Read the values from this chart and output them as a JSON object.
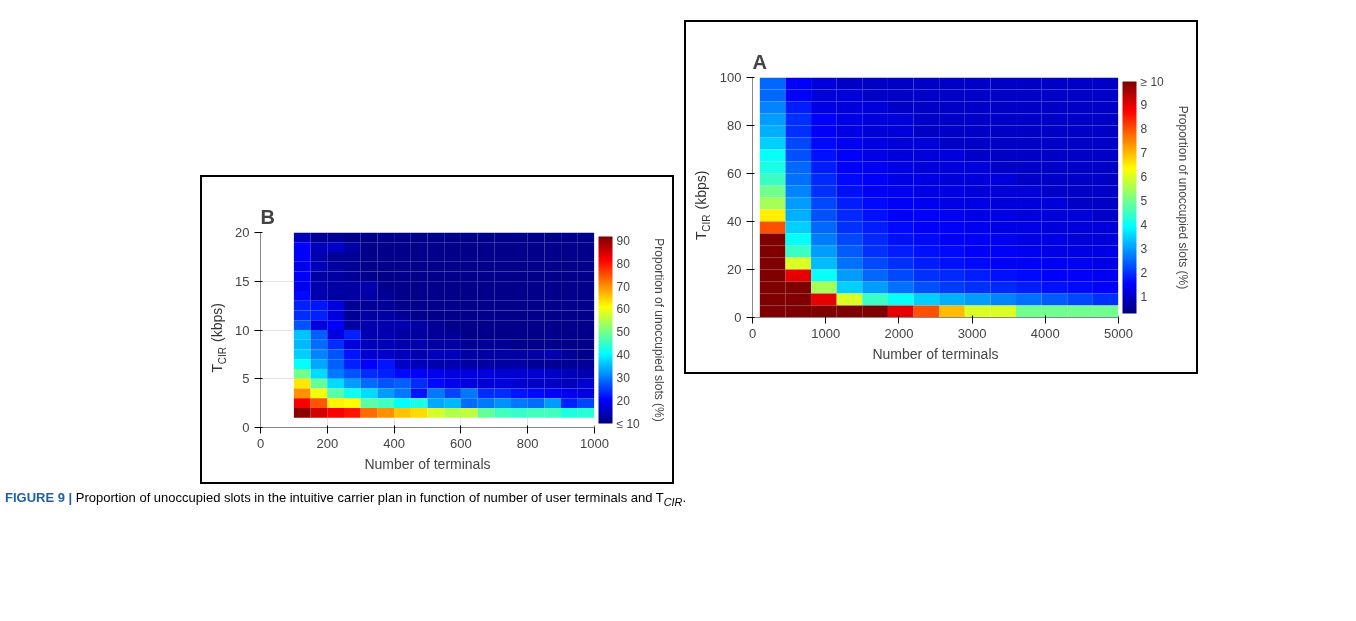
{
  "chart_data": [
    {
      "type": "heatmap",
      "title": "A",
      "xlabel": "Number of terminals",
      "ylabel": "T$_{CIR}$ (kbps)",
      "clabel": "Proportion of unoccupied slots (%)",
      "x": [
        275,
        625,
        975,
        1325,
        1675,
        2025,
        2375,
        2725,
        3075,
        3425,
        3775,
        4125,
        4475,
        4825
      ],
      "y": [
        97.5,
        92.5,
        87.5,
        82.5,
        77.5,
        72.5,
        67.5,
        62.5,
        57.5,
        52.5,
        47.5,
        42.5,
        37.5,
        32.5,
        27.5,
        22.5,
        17.5,
        12.5,
        7.5,
        2.5
      ],
      "cells": [
        [
          2.5,
          1.5,
          1.2,
          1,
          1,
          1,
          1,
          1,
          1,
          1,
          1,
          1,
          1,
          1
        ],
        [
          2.5,
          1.5,
          1.2,
          1.2,
          1,
          1,
          1,
          1,
          1,
          1,
          1,
          1,
          1,
          1
        ],
        [
          2.8,
          1.8,
          1.3,
          1.2,
          1.2,
          1,
          1,
          1,
          1,
          1,
          1,
          1,
          1,
          1
        ],
        [
          3,
          2,
          1.5,
          1.3,
          1.2,
          1.2,
          1,
          1,
          1,
          1,
          1,
          1,
          1,
          1
        ],
        [
          3.2,
          2,
          1.5,
          1.3,
          1.2,
          1.2,
          1,
          1,
          1,
          1,
          1,
          1,
          1,
          1
        ],
        [
          3.5,
          2.2,
          1.6,
          1.4,
          1.3,
          1.2,
          1.2,
          1,
          1,
          1,
          1,
          1,
          1,
          1
        ],
        [
          4,
          2.3,
          1.7,
          1.5,
          1.3,
          1.2,
          1.2,
          1.2,
          1,
          1,
          1,
          1,
          1,
          1
        ],
        [
          4.2,
          2.5,
          1.8,
          1.5,
          1.4,
          1.3,
          1.2,
          1.2,
          1.2,
          1,
          1,
          1,
          1,
          1
        ],
        [
          4.5,
          2.6,
          1.9,
          1.6,
          1.5,
          1.3,
          1.3,
          1.2,
          1.2,
          1.2,
          1,
          1,
          1,
          1
        ],
        [
          5,
          2.8,
          2,
          1.7,
          1.5,
          1.4,
          1.3,
          1.3,
          1.2,
          1.2,
          1.2,
          1,
          1,
          1
        ],
        [
          5.5,
          3,
          2.2,
          1.8,
          1.6,
          1.5,
          1.4,
          1.3,
          1.3,
          1.2,
          1.2,
          1.2,
          1,
          1
        ],
        [
          6.5,
          3.2,
          2.3,
          1.9,
          1.7,
          1.5,
          1.5,
          1.4,
          1.3,
          1.3,
          1.2,
          1.2,
          1.2,
          1
        ],
        [
          8,
          3.5,
          2.5,
          2,
          1.8,
          1.6,
          1.5,
          1.5,
          1.4,
          1.3,
          1.3,
          1.2,
          1.2,
          1.2
        ],
        [
          10,
          4,
          2.7,
          2.2,
          1.9,
          1.7,
          1.6,
          1.5,
          1.5,
          1.4,
          1.3,
          1.3,
          1.2,
          1.2
        ],
        [
          10,
          4.5,
          3,
          2.4,
          2,
          1.8,
          1.7,
          1.6,
          1.5,
          1.5,
          1.4,
          1.3,
          1.3,
          1.3
        ],
        [
          10,
          6,
          3.3,
          2.6,
          2.2,
          2,
          1.8,
          1.7,
          1.6,
          1.5,
          1.5,
          1.4,
          1.4,
          1.3
        ],
        [
          10,
          9,
          4,
          3,
          2.5,
          2.2,
          2,
          1.9,
          1.8,
          1.7,
          1.6,
          1.5,
          1.5,
          1.4
        ],
        [
          10,
          10,
          5.5,
          3.5,
          3,
          2.6,
          2.3,
          2.1,
          2,
          1.9,
          1.8,
          1.7,
          1.6,
          1.5
        ],
        [
          10,
          10,
          9,
          6,
          4.5,
          4,
          3.5,
          3.2,
          3,
          2.8,
          2.6,
          2.4,
          2.2,
          2
        ],
        [
          10,
          10,
          10,
          10,
          10,
          9,
          8,
          7,
          6,
          6,
          5,
          5,
          5,
          5
        ]
      ],
      "xlim": [
        0,
        5000
      ],
      "ylim": [
        0,
        100
      ],
      "xticks": [
        0,
        1000,
        2000,
        3000,
        4000,
        5000
      ],
      "yticks": [
        0,
        20,
        40,
        60,
        80,
        100
      ],
      "clim": [
        0.3,
        10
      ],
      "cticks": [
        1,
        2,
        3,
        4,
        5,
        6,
        7,
        8,
        9,
        {
          "value": 10,
          "label": "≥ 10"
        }
      ],
      "grid": false
    },
    {
      "type": "heatmap",
      "title": "B",
      "xlabel": "Number of terminals",
      "ylabel": "T$_{CIR}$ (kbps)",
      "clabel": "Proportion of unoccupied slots (%)",
      "x": [
        125,
        175,
        225,
        275,
        325,
        375,
        425,
        475,
        525,
        575,
        625,
        675,
        725,
        775,
        825,
        875,
        925,
        975
      ],
      "y": [
        19.5,
        18.5,
        17.5,
        16.5,
        15.5,
        14.5,
        13.5,
        12.5,
        11.5,
        10.5,
        9.5,
        8.5,
        7.5,
        6.5,
        5.5,
        4.5,
        3.5,
        2.5,
        1.5
      ],
      "cells": [
        [
          15,
          12,
          12,
          11,
          11,
          11,
          11,
          11,
          11,
          11,
          11,
          11,
          11,
          11,
          11,
          11,
          11,
          11
        ],
        [
          20,
          15,
          16,
          13,
          11,
          11,
          11,
          11,
          11,
          11,
          11,
          11,
          11,
          11,
          11,
          11,
          11,
          11
        ],
        [
          20,
          14,
          12,
          12,
          11,
          11,
          11,
          11,
          11,
          11,
          11,
          11,
          11,
          11,
          11,
          11,
          11,
          11
        ],
        [
          19,
          15,
          13,
          12,
          11,
          11,
          11,
          11,
          11,
          11,
          11,
          11,
          11,
          11,
          11,
          11,
          11,
          11
        ],
        [
          20,
          13,
          13,
          12,
          11,
          11,
          11,
          11,
          11,
          11,
          11,
          11,
          11,
          11,
          11,
          11,
          11,
          11
        ],
        [
          19,
          14,
          13,
          13,
          14,
          11,
          11,
          11,
          11,
          11,
          11,
          11,
          11,
          11,
          11,
          11,
          11,
          11
        ],
        [
          21,
          14,
          13,
          13,
          13,
          12,
          11,
          11,
          11,
          11,
          11,
          11,
          11,
          11,
          11,
          11,
          11,
          11
        ],
        [
          23,
          22,
          18,
          12,
          12,
          12,
          11,
          11,
          11,
          11,
          11,
          11,
          11,
          11,
          11,
          11,
          11,
          11
        ],
        [
          24,
          23,
          18,
          12,
          13,
          13,
          12,
          11,
          11,
          11,
          11,
          11,
          11,
          11,
          11,
          11,
          11,
          11
        ],
        [
          27,
          18,
          20,
          13,
          14,
          14,
          14,
          13,
          12,
          11,
          11,
          11,
          11,
          11,
          11,
          11,
          11,
          11
        ],
        [
          36,
          28,
          18,
          23,
          14,
          14,
          13,
          13,
          12,
          12,
          11,
          11,
          11,
          11,
          11,
          11,
          11,
          11
        ],
        [
          35,
          29,
          24,
          18,
          15,
          15,
          14,
          14,
          13,
          13,
          12,
          12,
          12,
          11,
          11,
          11,
          11,
          11
        ],
        [
          37,
          31,
          27,
          22,
          17,
          16,
          15,
          14,
          15,
          15,
          13,
          13,
          13,
          13,
          13,
          14,
          12,
          11
        ],
        [
          41,
          34,
          28,
          23,
          20,
          22,
          16,
          15,
          14,
          14,
          13,
          13,
          13,
          13,
          12,
          12,
          12,
          12
        ],
        [
          50,
          38,
          30,
          27,
          24,
          23,
          21,
          20,
          19,
          18,
          18,
          18,
          17,
          17,
          17,
          16,
          15,
          14
        ],
        [
          63,
          49,
          38,
          33,
          29,
          27,
          28,
          24,
          21,
          19,
          18,
          17,
          18,
          17,
          16,
          16,
          15,
          17
        ],
        [
          70,
          60,
          48,
          42,
          38,
          33,
          30,
          22,
          30,
          26,
          30,
          24,
          24,
          22,
          21,
          20,
          19,
          18
        ],
        [
          82,
          75,
          62,
          61,
          48,
          46,
          41,
          43,
          34,
          35,
          29,
          30,
          32,
          30,
          29,
          33,
          23,
          26
        ],
        [
          91,
          85,
          82,
          80,
          73,
          70,
          66,
          64,
          58,
          55,
          56,
          49,
          46,
          45,
          46,
          46,
          43,
          44
        ]
      ],
      "xlim": [
        0,
        1000
      ],
      "ylim": [
        0,
        20
      ],
      "xticks": [
        0,
        200,
        400,
        600,
        800,
        1000
      ],
      "yticks": [
        0,
        5,
        10,
        15,
        20
      ],
      "clim": [
        10,
        92
      ],
      "cticks": [
        {
          "value": 10,
          "label": "≤ 10"
        },
        20,
        30,
        40,
        50,
        60,
        70,
        80,
        90
      ],
      "grid": true,
      "annotations": [
        "FIGURE 9 | Proportion of unoccupied slots in the intuitive carrier plan in function of number of user terminals and T$_{CIR}$."
      ]
    }
  ]
}
